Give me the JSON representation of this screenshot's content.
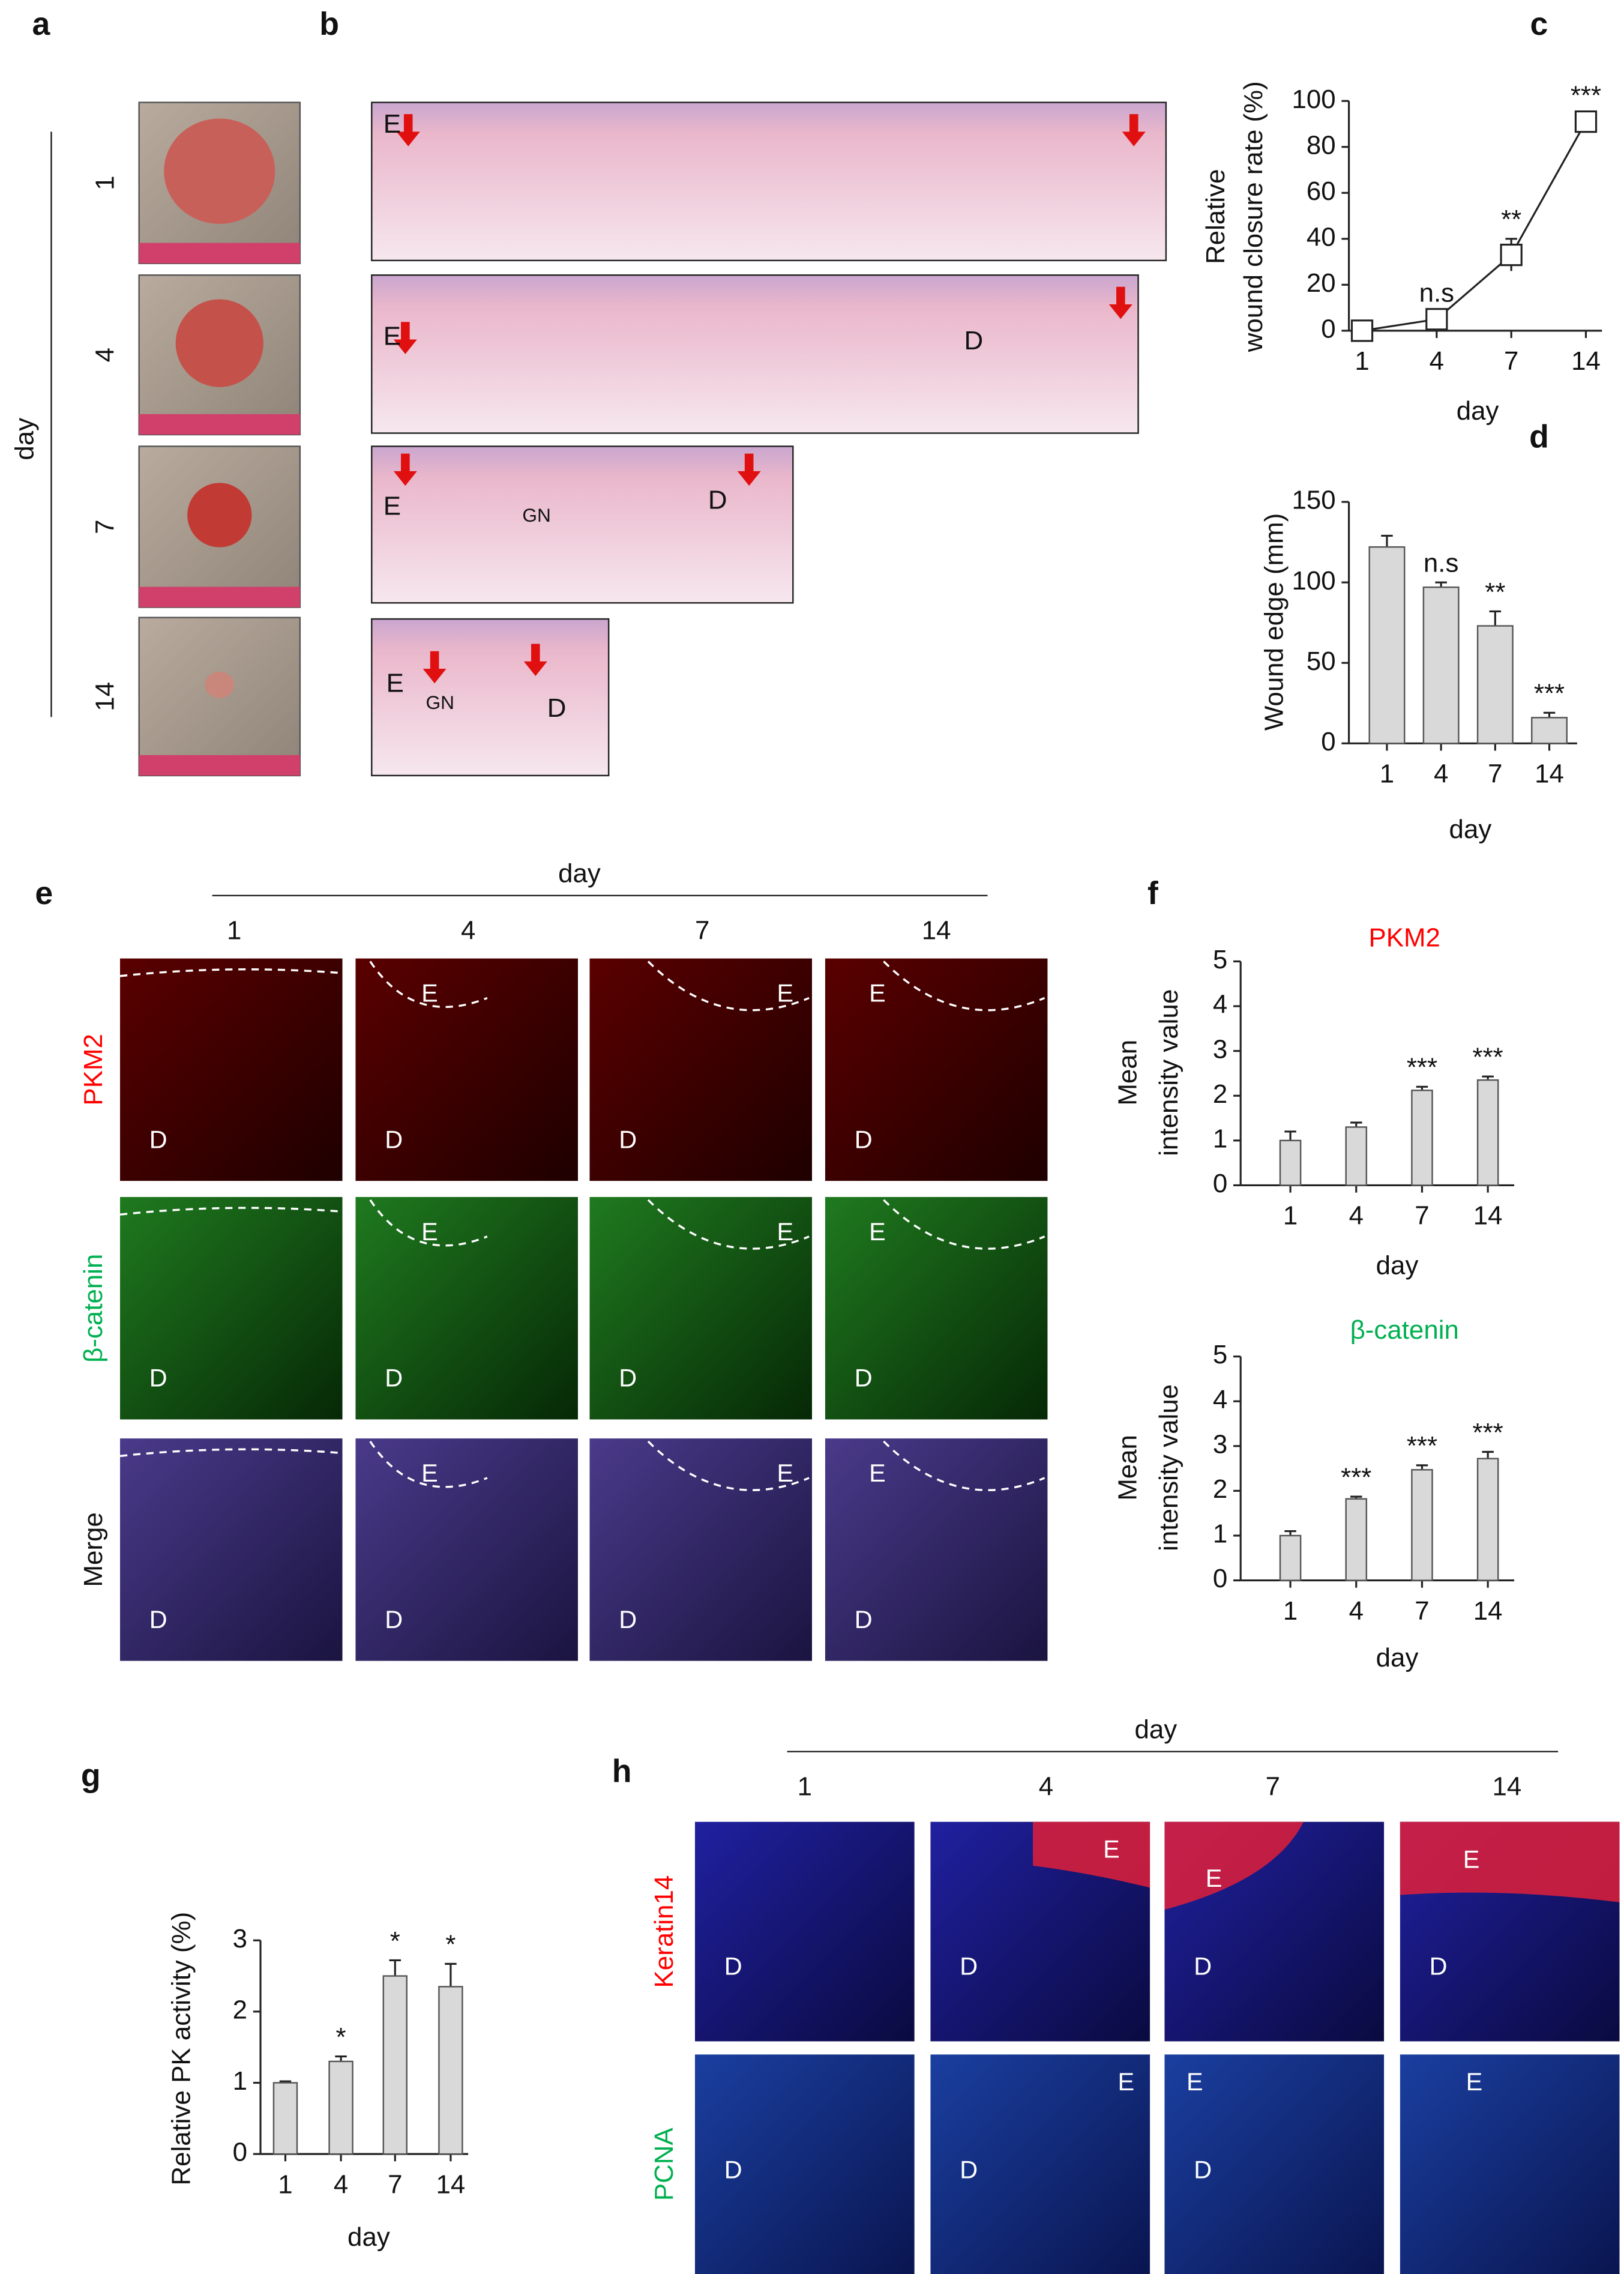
{
  "panel_letters": [
    "a",
    "b",
    "c",
    "d",
    "e",
    "f",
    "g",
    "h"
  ],
  "panel_a": {
    "axis_label": "day",
    "days": [
      "1",
      "4",
      "7",
      "14"
    ]
  },
  "panel_b": {
    "images": [
      {
        "labels": [
          "E"
        ]
      },
      {
        "labels": [
          "E",
          "D"
        ]
      },
      {
        "labels": [
          "E",
          "GN",
          "D"
        ]
      },
      {
        "labels": [
          "E",
          "GN",
          "D"
        ]
      }
    ]
  },
  "panel_e": {
    "axis_label": "day",
    "days": [
      "1",
      "4",
      "7",
      "14"
    ],
    "rows": [
      "PKM2",
      "β-catenin",
      "Merge"
    ],
    "cells": [
      [
        [
          "D"
        ],
        [
          "E",
          "D"
        ],
        [
          "E",
          "D"
        ],
        [
          "E",
          "D"
        ]
      ],
      [
        [
          "D"
        ],
        [
          "E",
          "D"
        ],
        [
          "E",
          "D"
        ],
        [
          "E",
          "D"
        ]
      ],
      [
        [
          "D"
        ],
        [
          "E",
          "D"
        ],
        [
          "E",
          "D"
        ],
        [
          "E",
          "D"
        ]
      ]
    ]
  },
  "panel_h": {
    "axis_label": "day",
    "days": [
      "1",
      "4",
      "7",
      "14"
    ],
    "rows": [
      "Keratin14",
      "PCNA"
    ],
    "cells": [
      [
        [
          "D"
        ],
        [
          "E",
          "D"
        ],
        [
          "E",
          "D"
        ],
        [
          "E",
          "D"
        ]
      ],
      [
        [
          "D"
        ],
        [
          "E",
          "D"
        ],
        [
          "E",
          "D"
        ],
        [
          "E"
        ]
      ]
    ]
  },
  "chart_data": [
    {
      "type": "line",
      "ylabel": [
        "Relative",
        "wound closure rate (%)"
      ],
      "xlabel": "day",
      "categories": [
        "1",
        "4",
        "7",
        "14"
      ],
      "values": [
        0,
        5,
        33,
        91
      ],
      "errors": [
        3,
        3,
        7,
        3
      ],
      "significance": [
        null,
        "n.s",
        "**",
        "***"
      ],
      "ylim": [
        0,
        100
      ],
      "yticks": [
        0,
        20,
        40,
        60,
        80,
        100
      ],
      "color": "#222222"
    },
    {
      "type": "bar",
      "ylabel": [
        "Wound edge (mm)"
      ],
      "xlabel": "day",
      "categories": [
        "1",
        "4",
        "7",
        "14"
      ],
      "values": [
        122,
        97,
        73,
        16
      ],
      "errors": [
        7,
        3,
        9,
        3
      ],
      "significance": [
        null,
        "n.s",
        "**",
        "***"
      ],
      "ylim": [
        0,
        150
      ],
      "yticks": [
        0,
        50,
        100,
        150
      ],
      "color": "#d9d9d9"
    },
    {
      "type": "bar",
      "title": "PKM2",
      "title_color": "#ff0000",
      "ylabel": [
        "Mean",
        "intensity value"
      ],
      "xlabel": "day",
      "categories": [
        "1",
        "4",
        "7",
        "14"
      ],
      "values": [
        1.0,
        1.3,
        2.12,
        2.35
      ],
      "errors": [
        0.2,
        0.1,
        0.08,
        0.08
      ],
      "significance": [
        null,
        null,
        "***",
        "***"
      ],
      "ylim": [
        0,
        5
      ],
      "yticks": [
        0,
        1,
        2,
        3,
        4,
        5
      ],
      "color": "#d9d9d9"
    },
    {
      "type": "bar",
      "title": "β-catenin",
      "title_color": "#00b050",
      "ylabel": [
        "Mean",
        "intensity value"
      ],
      "xlabel": "day",
      "categories": [
        "1",
        "4",
        "7",
        "14"
      ],
      "values": [
        1.0,
        1.82,
        2.47,
        2.72
      ],
      "errors": [
        0.1,
        0.05,
        0.1,
        0.15
      ],
      "significance": [
        null,
        "***",
        "***",
        "***"
      ],
      "ylim": [
        0,
        5
      ],
      "yticks": [
        0,
        1,
        2,
        3,
        4,
        5
      ],
      "color": "#d9d9d9"
    },
    {
      "type": "bar",
      "ylabel": [
        "Relative PK activity (%)"
      ],
      "xlabel": "day",
      "categories": [
        "1",
        "4",
        "7",
        "14"
      ],
      "values": [
        1.0,
        1.3,
        2.5,
        2.35
      ],
      "errors": [
        0.02,
        0.07,
        0.22,
        0.32
      ],
      "significance": [
        null,
        "*",
        "*",
        "*"
      ],
      "ylim": [
        0,
        3
      ],
      "yticks": [
        0,
        1,
        2,
        3
      ],
      "color": "#d9d9d9"
    }
  ]
}
